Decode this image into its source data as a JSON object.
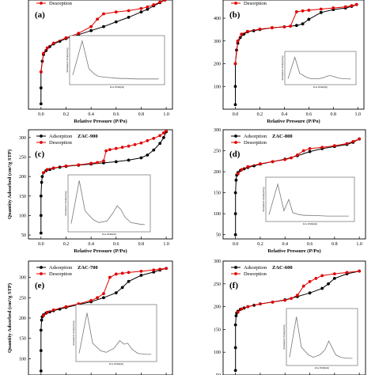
{
  "chart_data": [
    {
      "type": "line",
      "panel_label": "(a)",
      "title": "",
      "xlabel": "Relative Pressure (P/Po)",
      "ylabel": "",
      "xlim": [
        -0.1,
        1.05
      ],
      "ylim": [
        40,
        450
      ],
      "xticks": [
        "0.0",
        "0.2",
        "0.4",
        "0.6",
        "0.8",
        "1.0"
      ],
      "yticks": [],
      "legend": [
        "Desorption"
      ],
      "legend_position": "top-left",
      "series": [
        {
          "name": "Adsorption",
          "color": "#000000",
          "x": [
            0.0,
            0.0,
            0.0,
            0.01,
            0.02,
            0.04,
            0.07,
            0.1,
            0.15,
            0.2,
            0.3,
            0.4,
            0.5,
            0.6,
            0.7,
            0.8,
            0.85,
            0.9,
            0.95,
            0.99
          ],
          "y": [
            60,
            120,
            180,
            220,
            245,
            260,
            275,
            285,
            295,
            305,
            320,
            335,
            350,
            368,
            385,
            405,
            415,
            428,
            440,
            450
          ]
        },
        {
          "name": "Desorption",
          "color": "#e00000",
          "x": [
            0.99,
            0.95,
            0.9,
            0.85,
            0.8,
            0.7,
            0.6,
            0.5,
            0.45,
            0.4,
            0.3,
            0.2,
            0.1,
            0.05,
            0.02,
            0.0
          ],
          "y": [
            450,
            442,
            432,
            424,
            418,
            410,
            405,
            398,
            378,
            350,
            325,
            308,
            288,
            270,
            250,
            180
          ]
        }
      ],
      "inset": {
        "xlabel": "Pore Width(nm)",
        "ylabel": "Incremental Volume(cm³/g)",
        "x": [
          1,
          1.5,
          2,
          2.5,
          3,
          4,
          5,
          6,
          8,
          10,
          15,
          20,
          30,
          40
        ],
        "y": [
          0.15,
          0.95,
          0.3,
          0.18,
          0.12,
          0.1,
          0.09,
          0.08,
          0.07,
          0.07,
          0.06,
          0.06,
          0.06,
          0.06
        ]
      }
    },
    {
      "type": "line",
      "panel_label": "(b)",
      "title": "",
      "xlabel": "Relative Pressure (P/Po)",
      "ylabel": "",
      "xlim": [
        -0.1,
        1.05
      ],
      "ylim": [
        0,
        480
      ],
      "xticks": [
        "0.0",
        "0.2",
        "0.4",
        "0.6",
        "0.8",
        "1.0"
      ],
      "yticks": [
        "100",
        "200",
        "300",
        "400"
      ],
      "legend": [
        "Desorption"
      ],
      "legend_position": "top-left",
      "series": [
        {
          "name": "Adsorption",
          "color": "#000000",
          "x": [
            0.0,
            0.0,
            0.0,
            0.01,
            0.02,
            0.04,
            0.07,
            0.1,
            0.15,
            0.2,
            0.3,
            0.4,
            0.5,
            0.55,
            0.6,
            0.7,
            0.8,
            0.9,
            0.95,
            0.99
          ],
          "y": [
            20,
            100,
            200,
            260,
            290,
            315,
            330,
            340,
            345,
            350,
            358,
            362,
            368,
            375,
            395,
            425,
            438,
            445,
            452,
            460
          ]
        },
        {
          "name": "Desorption",
          "color": "#e00000",
          "x": [
            0.99,
            0.95,
            0.9,
            0.8,
            0.7,
            0.6,
            0.55,
            0.5,
            0.45,
            0.4,
            0.3,
            0.2,
            0.1,
            0.05,
            0.02,
            0.0
          ],
          "y": [
            460,
            455,
            450,
            445,
            440,
            435,
            432,
            428,
            365,
            362,
            358,
            352,
            342,
            330,
            300,
            200
          ]
        }
      ],
      "inset": {
        "xlabel": "Pore Width(nm)",
        "ylabel": "Incremental Volume(cm³/g)",
        "x": [
          1,
          1.5,
          2,
          3,
          4,
          6,
          8,
          10,
          12,
          15,
          20,
          30,
          40
        ],
        "y": [
          0.1,
          0.9,
          0.3,
          0.15,
          0.1,
          0.1,
          0.14,
          0.2,
          0.22,
          0.18,
          0.12,
          0.1,
          0.09
        ]
      }
    },
    {
      "type": "line",
      "panel_label": "(c)",
      "title": "ZAC-900",
      "xlabel": "Relative Pressure (P/Po)",
      "ylabel": "Quantity Adsorbed (cm³/g STP)",
      "xlim": [
        -0.1,
        1.05
      ],
      "ylim": [
        40,
        320
      ],
      "xticks": [
        "0.0",
        "0.2",
        "0.4",
        "0.6",
        "0.8",
        "1.0"
      ],
      "yticks": [
        "50",
        "100",
        "150",
        "200",
        "250",
        "300"
      ],
      "legend": [
        "Adsorption",
        "Desorption"
      ],
      "legend_position": "top-left",
      "series": [
        {
          "name": "Adsorption",
          "color": "#000000",
          "x": [
            0.0,
            0.0,
            0.0,
            0.005,
            0.01,
            0.02,
            0.04,
            0.07,
            0.1,
            0.15,
            0.2,
            0.3,
            0.4,
            0.5,
            0.6,
            0.7,
            0.8,
            0.85,
            0.9,
            0.95,
            0.98,
            1.0
          ],
          "y": [
            55,
            100,
            150,
            185,
            200,
            210,
            215,
            218,
            221,
            224,
            226,
            229,
            232,
            235,
            238,
            242,
            248,
            255,
            268,
            285,
            300,
            315
          ]
        },
        {
          "name": "Desorption",
          "color": "#e00000",
          "x": [
            1.0,
            0.98,
            0.95,
            0.9,
            0.85,
            0.8,
            0.75,
            0.7,
            0.65,
            0.6,
            0.55,
            0.52,
            0.5,
            0.45,
            0.4,
            0.3,
            0.2,
            0.1,
            0.05,
            0.02
          ],
          "y": [
            318,
            312,
            305,
            298,
            292,
            286,
            282,
            278,
            275,
            272,
            269,
            266,
            240,
            236,
            234,
            230,
            227,
            222,
            218,
            210
          ]
        }
      ],
      "inset": {
        "xlabel": "Pore Width(nm)",
        "ylabel": "Incremental Volume(cm³/g)",
        "x": [
          1,
          1.5,
          2,
          3,
          4,
          6,
          8,
          10,
          12,
          15,
          20,
          30,
          40
        ],
        "y": [
          0.1,
          0.95,
          0.35,
          0.18,
          0.12,
          0.15,
          0.3,
          0.45,
          0.38,
          0.22,
          0.12,
          0.09,
          0.08
        ]
      }
    },
    {
      "type": "line",
      "panel_label": "(d)",
      "title": "ZAC-800",
      "xlabel": "Relative Pressure (P/Po)",
      "ylabel": "",
      "xlim": [
        -0.1,
        1.05
      ],
      "ylim": [
        40,
        300
      ],
      "xticks": [
        "0.0",
        "0.2",
        "0.4",
        "0.6",
        "0.8",
        "1.0"
      ],
      "yticks": [
        "50",
        "100",
        "150",
        "200",
        "250",
        "300"
      ],
      "legend": [
        "Adsorption",
        "Desorption"
      ],
      "legend_position": "top-left",
      "series": [
        {
          "name": "Adsorption",
          "color": "#000000",
          "x": [
            0.0,
            0.0,
            0.0,
            0.005,
            0.01,
            0.02,
            0.04,
            0.07,
            0.1,
            0.15,
            0.2,
            0.3,
            0.4,
            0.5,
            0.6,
            0.7,
            0.8,
            0.9,
            0.95,
            1.0
          ],
          "y": [
            50,
            100,
            150,
            180,
            192,
            198,
            203,
            207,
            210,
            214,
            218,
            224,
            230,
            238,
            248,
            255,
            260,
            265,
            270,
            278
          ]
        },
        {
          "name": "Desorption",
          "color": "#e00000",
          "x": [
            1.0,
            0.95,
            0.9,
            0.8,
            0.7,
            0.6,
            0.55,
            0.5,
            0.45,
            0.4,
            0.3,
            0.2,
            0.1,
            0.05,
            0.02
          ],
          "y": [
            278,
            272,
            267,
            262,
            258,
            255,
            250,
            240,
            233,
            229,
            224,
            219,
            212,
            205,
            195
          ]
        }
      ],
      "inset": {
        "xlabel": "Pore Width(nm)",
        "ylabel": "Incremental Volume(cm³/g)",
        "x": [
          1,
          1.5,
          2,
          2.5,
          3,
          4,
          5,
          6,
          8,
          10,
          15,
          20,
          30,
          40
        ],
        "y": [
          0.1,
          0.9,
          0.2,
          0.5,
          0.15,
          0.1,
          0.08,
          0.08,
          0.07,
          0.07,
          0.06,
          0.06,
          0.06,
          0.06
        ]
      }
    },
    {
      "type": "line",
      "panel_label": "(e)",
      "title": "ZAC-700",
      "xlabel": "",
      "ylabel": "Quantity Adsorbed (cm³/g STP)",
      "xlim": [
        -0.1,
        1.05
      ],
      "ylim": [
        60,
        340
      ],
      "xticks": [],
      "yticks": [
        "100",
        "150",
        "200",
        "250",
        "300",
        "350"
      ],
      "legend": [
        "Adsorption",
        "Desorption"
      ],
      "legend_position": "top-left",
      "series": [
        {
          "name": "Adsorption",
          "color": "#000000",
          "x": [
            0.0,
            0.0,
            0.0,
            0.005,
            0.01,
            0.02,
            0.04,
            0.07,
            0.1,
            0.15,
            0.2,
            0.3,
            0.4,
            0.5,
            0.6,
            0.65,
            0.7,
            0.8,
            0.9,
            0.95,
            1.0
          ],
          "y": [
            70,
            120,
            170,
            195,
            203,
            208,
            212,
            215,
            218,
            222,
            226,
            233,
            240,
            250,
            262,
            275,
            290,
            305,
            313,
            318,
            322
          ]
        },
        {
          "name": "Desorption",
          "color": "#e00000",
          "x": [
            1.0,
            0.95,
            0.9,
            0.8,
            0.7,
            0.65,
            0.6,
            0.55,
            0.5,
            0.45,
            0.4,
            0.3,
            0.2,
            0.1,
            0.05,
            0.02
          ],
          "y": [
            322,
            320,
            318,
            315,
            312,
            310,
            308,
            300,
            260,
            250,
            243,
            235,
            228,
            220,
            214,
            206
          ]
        }
      ],
      "inset": {
        "xlabel": "Pore Width(nm)",
        "ylabel": "Incremental Volume(cm³/g)",
        "x": [
          1,
          1.5,
          2,
          3,
          4,
          6,
          8,
          10,
          12,
          15,
          20,
          30,
          40
        ],
        "y": [
          0.1,
          0.9,
          0.3,
          0.15,
          0.12,
          0.2,
          0.35,
          0.28,
          0.3,
          0.18,
          0.1,
          0.08,
          0.08
        ]
      }
    },
    {
      "type": "line",
      "panel_label": "(f)",
      "title": "ZAC-600",
      "xlabel": "",
      "ylabel": "",
      "xlim": [
        -0.1,
        1.05
      ],
      "ylim": [
        50,
        300
      ],
      "xticks": [],
      "yticks": [
        "50",
        "100",
        "150",
        "200",
        "250",
        "300"
      ],
      "legend": [
        "Adsorption",
        "Desorption"
      ],
      "legend_position": "top-left",
      "series": [
        {
          "name": "Adsorption",
          "color": "#000000",
          "x": [
            0.0,
            0.0,
            0.0,
            0.005,
            0.01,
            0.02,
            0.04,
            0.07,
            0.1,
            0.15,
            0.2,
            0.3,
            0.4,
            0.5,
            0.6,
            0.7,
            0.75,
            0.8,
            0.9,
            1.0
          ],
          "y": [
            60,
            110,
            160,
            180,
            186,
            190,
            194,
            197,
            200,
            203,
            206,
            210,
            215,
            222,
            230,
            240,
            250,
            262,
            272,
            278
          ]
        },
        {
          "name": "Desorption",
          "color": "#e00000",
          "x": [
            1.0,
            0.9,
            0.8,
            0.7,
            0.65,
            0.6,
            0.55,
            0.5,
            0.45,
            0.4,
            0.3,
            0.2,
            0.1,
            0.05,
            0.02
          ],
          "y": [
            278,
            275,
            272,
            268,
            262,
            255,
            245,
            225,
            218,
            214,
            210,
            206,
            200,
            195,
            188
          ]
        }
      ],
      "inset": {
        "xlabel": "Pore Width(nm)",
        "ylabel": "Incremental Volume(cm³/g)",
        "x": [
          1,
          1.5,
          2,
          3,
          4,
          6,
          8,
          10,
          12,
          15,
          20,
          30,
          40
        ],
        "y": [
          0.1,
          0.9,
          0.3,
          0.15,
          0.1,
          0.15,
          0.25,
          0.42,
          0.3,
          0.15,
          0.1,
          0.08,
          0.08
        ]
      }
    }
  ]
}
